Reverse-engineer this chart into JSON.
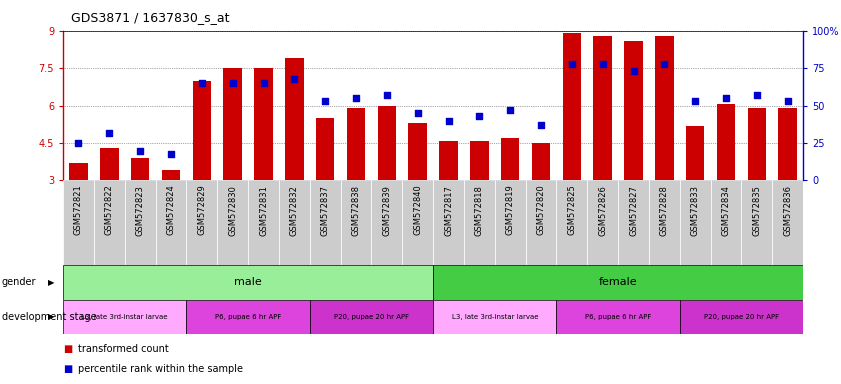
{
  "title": "GDS3871 / 1637830_s_at",
  "samples": [
    "GSM572821",
    "GSM572822",
    "GSM572823",
    "GSM572824",
    "GSM572829",
    "GSM572830",
    "GSM572831",
    "GSM572832",
    "GSM572837",
    "GSM572838",
    "GSM572839",
    "GSM572840",
    "GSM572817",
    "GSM572818",
    "GSM572819",
    "GSM572820",
    "GSM572825",
    "GSM572826",
    "GSM572827",
    "GSM572828",
    "GSM572833",
    "GSM572834",
    "GSM572835",
    "GSM572836"
  ],
  "bar_values": [
    3.7,
    4.3,
    3.9,
    3.4,
    7.0,
    7.5,
    7.5,
    7.9,
    5.5,
    5.9,
    6.0,
    5.3,
    4.6,
    4.6,
    4.7,
    4.5,
    8.9,
    8.8,
    8.6,
    8.8,
    5.2,
    6.05,
    5.9,
    5.9
  ],
  "dot_values": [
    25,
    32,
    20,
    18,
    65,
    65,
    65,
    68,
    53,
    55,
    57,
    45,
    40,
    43,
    47,
    37,
    78,
    78,
    73,
    78,
    53,
    55,
    57,
    53
  ],
  "ylim": [
    3,
    9
  ],
  "yticks": [
    3,
    4.5,
    6,
    7.5,
    9
  ],
  "y2lim": [
    0,
    100
  ],
  "y2ticks": [
    0,
    25,
    50,
    75,
    100
  ],
  "bar_color": "#cc0000",
  "dot_color": "#0000cc",
  "grid_color": "#555555",
  "gender_male_color": "#99ee99",
  "gender_female_color": "#44cc44",
  "stage_l3_color": "#ffaaff",
  "stage_p6_color": "#dd44dd",
  "stage_p20_color": "#cc33cc",
  "cell_bg": "#cccccc",
  "gender_groups": [
    {
      "label": "male",
      "start": 0,
      "end": 11
    },
    {
      "label": "female",
      "start": 12,
      "end": 23
    }
  ],
  "stage_groups": [
    {
      "label": "L3, late 3rd-instar larvae",
      "start": 0,
      "end": 3,
      "color": "#ffaaff"
    },
    {
      "label": "P6, pupae 6 hr APF",
      "start": 4,
      "end": 7,
      "color": "#dd44dd"
    },
    {
      "label": "P20, pupae 20 hr APF",
      "start": 8,
      "end": 11,
      "color": "#cc33cc"
    },
    {
      "label": "L3, late 3rd-instar larvae",
      "start": 12,
      "end": 15,
      "color": "#ffaaff"
    },
    {
      "label": "P6, pupae 6 hr APF",
      "start": 16,
      "end": 19,
      "color": "#dd44dd"
    },
    {
      "label": "P20, pupae 20 hr APF",
      "start": 20,
      "end": 23,
      "color": "#cc33cc"
    }
  ]
}
